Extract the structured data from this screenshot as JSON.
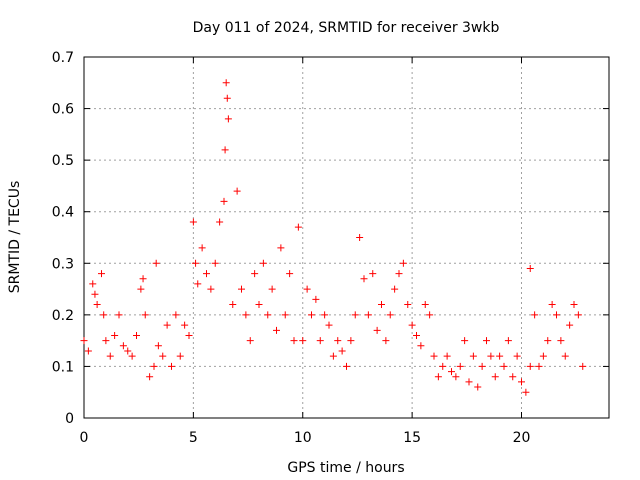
{
  "chart_data": {
    "type": "scatter",
    "title": "Day 011 of 2024, SRMTID for receiver 3wkb",
    "xlabel": "GPS time / hours",
    "ylabel": "SRMTID / TECUs",
    "xlim": [
      0,
      24
    ],
    "ylim": [
      0,
      0.7
    ],
    "xticks": [
      0,
      5,
      10,
      15,
      20
    ],
    "xtick_labels": [
      "0",
      "5",
      "10",
      "15",
      "20"
    ],
    "yticks": [
      0,
      0.1,
      0.2,
      0.3,
      0.4,
      0.5,
      0.6,
      0.7
    ],
    "ytick_labels": [
      "0",
      "0.1",
      "0.2",
      "0.3",
      "0.4",
      "0.5",
      "0.6",
      "0.7"
    ],
    "grid": true,
    "marker": "plus",
    "series": [
      {
        "name": "SRMTID",
        "color": "#ff0000",
        "x": [
          0.0,
          0.2,
          0.4,
          0.5,
          0.6,
          0.8,
          0.9,
          1.0,
          1.2,
          1.4,
          1.6,
          1.8,
          2.0,
          2.2,
          2.4,
          2.6,
          2.7,
          2.8,
          3.0,
          3.2,
          3.3,
          3.4,
          3.6,
          3.8,
          4.0,
          4.2,
          4.4,
          4.6,
          4.8,
          5.0,
          5.1,
          5.2,
          5.4,
          5.6,
          5.8,
          6.0,
          6.2,
          6.4,
          6.45,
          6.5,
          6.55,
          6.6,
          6.8,
          7.0,
          7.2,
          7.4,
          7.6,
          7.8,
          8.0,
          8.2,
          8.4,
          8.6,
          8.8,
          9.0,
          9.2,
          9.4,
          9.6,
          9.8,
          10.0,
          10.2,
          10.4,
          10.6,
          10.8,
          11.0,
          11.2,
          11.4,
          11.6,
          11.8,
          12.0,
          12.2,
          12.4,
          12.6,
          12.8,
          13.0,
          13.2,
          13.4,
          13.6,
          13.8,
          14.0,
          14.2,
          14.4,
          14.6,
          14.8,
          15.0,
          15.2,
          15.4,
          15.6,
          15.8,
          16.0,
          16.2,
          16.4,
          16.6,
          16.8,
          17.0,
          17.2,
          17.4,
          17.6,
          17.8,
          18.0,
          18.2,
          18.4,
          18.6,
          18.8,
          19.0,
          19.2,
          19.4,
          19.6,
          19.8,
          20.0,
          20.2,
          20.4,
          20.4,
          20.6,
          20.8,
          21.0,
          21.2,
          21.4,
          21.6,
          21.8,
          22.0,
          22.2,
          22.4,
          22.6,
          22.8
        ],
        "y": [
          0.15,
          0.13,
          0.26,
          0.24,
          0.22,
          0.28,
          0.2,
          0.15,
          0.12,
          0.16,
          0.2,
          0.14,
          0.13,
          0.12,
          0.16,
          0.25,
          0.27,
          0.2,
          0.08,
          0.1,
          0.3,
          0.14,
          0.12,
          0.18,
          0.1,
          0.2,
          0.12,
          0.18,
          0.16,
          0.38,
          0.3,
          0.26,
          0.33,
          0.28,
          0.25,
          0.3,
          0.38,
          0.42,
          0.52,
          0.65,
          0.62,
          0.58,
          0.22,
          0.44,
          0.25,
          0.2,
          0.15,
          0.28,
          0.22,
          0.3,
          0.2,
          0.25,
          0.17,
          0.33,
          0.2,
          0.28,
          0.15,
          0.37,
          0.15,
          0.25,
          0.2,
          0.23,
          0.15,
          0.2,
          0.18,
          0.12,
          0.15,
          0.13,
          0.1,
          0.15,
          0.2,
          0.35,
          0.27,
          0.2,
          0.28,
          0.17,
          0.22,
          0.15,
          0.2,
          0.25,
          0.28,
          0.3,
          0.22,
          0.18,
          0.16,
          0.14,
          0.22,
          0.2,
          0.12,
          0.08,
          0.1,
          0.12,
          0.09,
          0.08,
          0.1,
          0.15,
          0.07,
          0.12,
          0.06,
          0.1,
          0.15,
          0.12,
          0.08,
          0.12,
          0.1,
          0.15,
          0.08,
          0.12,
          0.07,
          0.05,
          0.1,
          0.29,
          0.2,
          0.1,
          0.12,
          0.15,
          0.22,
          0.2,
          0.15,
          0.12,
          0.18,
          0.22,
          0.2,
          0.1
        ]
      }
    ]
  }
}
